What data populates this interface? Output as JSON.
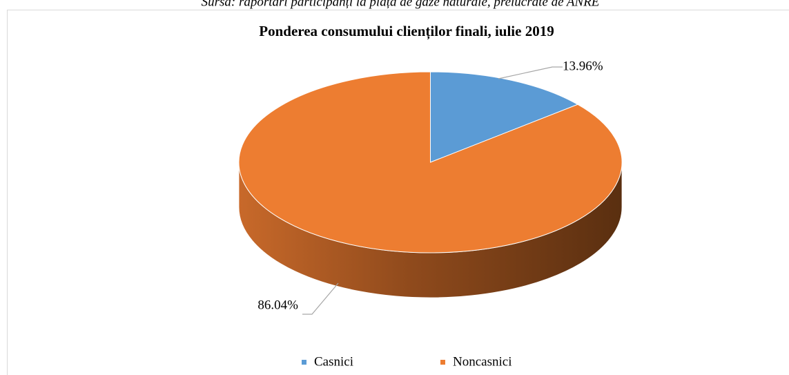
{
  "chart_data": {
    "type": "pie",
    "source": "Sursa: raportări participanți la piața de gaze naturale, prelucrate de ANRE",
    "title": "Ponderea consumului clienților finali, iulie 2019",
    "categories": [
      "Casnici",
      "Noncasnici"
    ],
    "values": [
      13.96,
      86.04
    ],
    "value_labels": [
      "13.96%",
      "86.04%"
    ],
    "colors": [
      "#5b9bd5",
      "#ed7d31"
    ],
    "legend": "bottom"
  }
}
